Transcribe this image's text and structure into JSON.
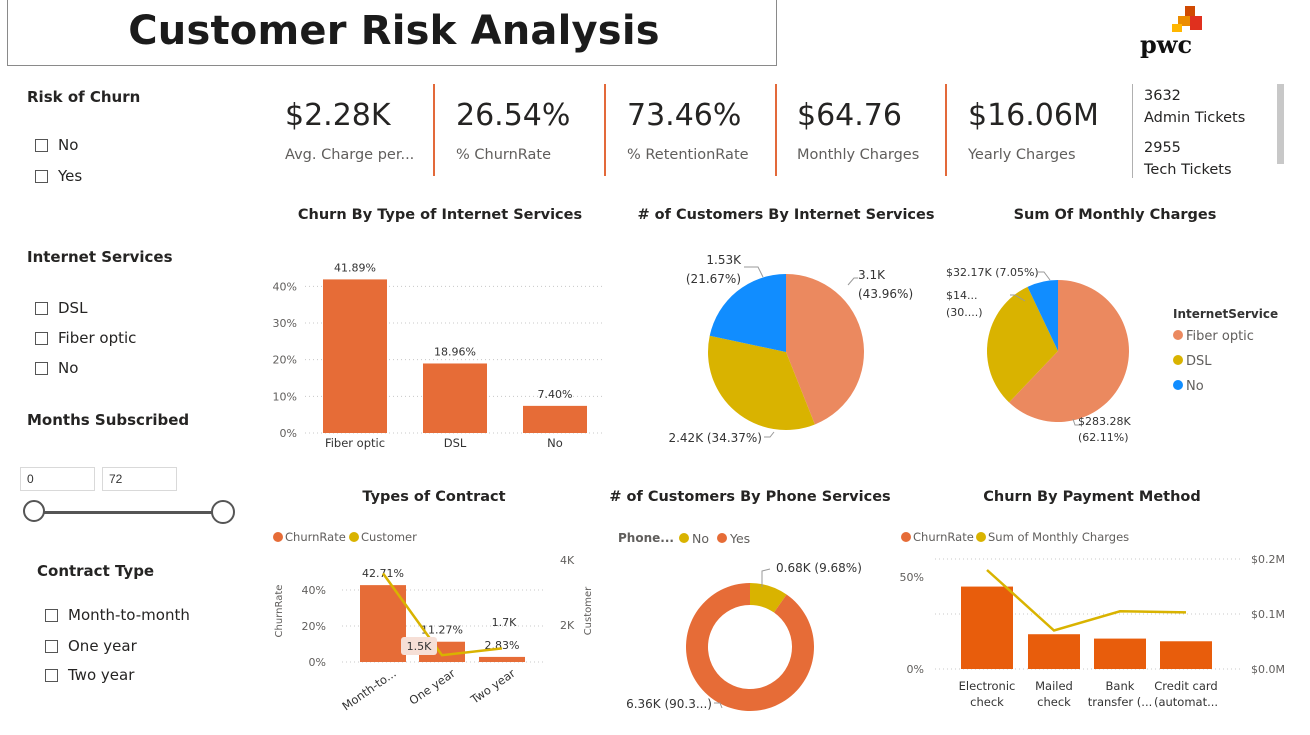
{
  "header": {
    "title": "Customer Risk Analysis",
    "logo_text": "pwc"
  },
  "slicers": {
    "risk_of_churn": {
      "title": "Risk of Churn",
      "items": [
        "No",
        "Yes"
      ]
    },
    "internet_services": {
      "title": "Internet Services",
      "items": [
        "DSL",
        "Fiber optic",
        "No"
      ]
    },
    "months_subscribed": {
      "title": "Months Subscribed",
      "min": "0",
      "max": "72"
    },
    "contract_type": {
      "title": "Contract Type",
      "items": [
        "Month-to-month",
        "One year",
        "Two year"
      ]
    }
  },
  "kpis": [
    {
      "value": "$2.28K",
      "label": "Avg. Charge per..."
    },
    {
      "value": "26.54%",
      "label": "% ChurnRate"
    },
    {
      "value": "73.46%",
      "label": "% RetentionRate"
    },
    {
      "value": "$64.76",
      "label": "Monthly Charges"
    },
    {
      "value": "$16.06M",
      "label": "Yearly Charges"
    }
  ],
  "tickets": [
    {
      "count": "3632",
      "label": "Admin Tickets"
    },
    {
      "count": "2955",
      "label": "Tech Tickets"
    }
  ],
  "colors": {
    "orange": "#e66c37",
    "yellow": "#d9b300",
    "salmon": "#eb895f",
    "blue": "#118dff",
    "separator": "#e3693a"
  },
  "chart_data": [
    {
      "type": "bar",
      "title": "Churn By Type of Internet Services",
      "categories": [
        "Fiber optic",
        "DSL",
        "No"
      ],
      "values": [
        41.89,
        18.96,
        7.4
      ],
      "data_labels": [
        "41.89%",
        "18.96%",
        "7.40%"
      ],
      "y_ticks": [
        "0%",
        "10%",
        "20%",
        "30%",
        "40%"
      ],
      "ylim": [
        0,
        45
      ],
      "grid": true
    },
    {
      "type": "pie",
      "title": "# of Customers By Internet Services",
      "slices": [
        {
          "name": "Fiber optic",
          "value": 3096,
          "label": "3.1K",
          "pct": "(43.96%)"
        },
        {
          "name": "DSL",
          "value": 2421,
          "label": "2.42K (34.37%)"
        },
        {
          "name": "No",
          "value": 1526,
          "label": "1.53K",
          "pct": "(21.67%)"
        }
      ]
    },
    {
      "type": "pie",
      "title": "Sum Of Monthly Charges",
      "legend_title": "InternetService",
      "legend": [
        "Fiber optic",
        "DSL",
        "No"
      ],
      "slices": [
        {
          "name": "Fiber optic",
          "value": 283.28,
          "label": "$283.28K",
          "pct": "(62.11%)"
        },
        {
          "name": "DSL",
          "value": 140.66,
          "label": "$14...",
          "pct": "(30....)"
        },
        {
          "name": "No",
          "value": 32.17,
          "label": "$32.17K (7.05%)"
        }
      ]
    },
    {
      "type": "bar",
      "title": "Types of Contract",
      "legend": [
        "ChurnRate",
        "Customer"
      ],
      "categories": [
        "Month-to...",
        "One year",
        "Two year"
      ],
      "values": [
        42.71,
        11.27,
        2.83
      ],
      "data_labels": [
        "42.71%",
        "11.27%",
        "2.83%"
      ],
      "line_values": [
        3.9,
        1.5,
        1.7
      ],
      "line_labels": [
        "",
        "1.5K",
        "1.7K"
      ],
      "y_ticks": [
        "0%",
        "20%",
        "40%"
      ],
      "y2_ticks": [
        "2K",
        "4K"
      ],
      "ylabel": "ChurnRate",
      "y2label": "Customer",
      "ylim": [
        0,
        50
      ],
      "y2lim": [
        0,
        4.5
      ]
    },
    {
      "type": "pie",
      "title": "# of Customers By Phone Services",
      "legend_title": "Phone...",
      "legend": [
        "No",
        "Yes"
      ],
      "slices": [
        {
          "name": "No",
          "value": 682,
          "label": "0.68K (9.68%)"
        },
        {
          "name": "Yes",
          "value": 6361,
          "label": "6.36K (90.3...)"
        }
      ]
    },
    {
      "type": "bar",
      "title": "Churn By Payment Method",
      "legend": [
        "ChurnRate",
        "Sum of Monthly Charges"
      ],
      "categories": [
        [
          "Electronic",
          "check"
        ],
        [
          "Mailed",
          "check"
        ],
        [
          "Bank",
          "transfer (..."
        ],
        [
          "Credit card",
          "(automat..."
        ]
      ],
      "values": [
        45.29,
        19.11,
        16.71,
        15.24
      ],
      "line_values": [
        0.18,
        0.07,
        0.105,
        0.103
      ],
      "y_ticks": [
        "0%",
        "50%"
      ],
      "y2_ticks": [
        "$0.0M",
        "$0.1M",
        "$0.2M"
      ],
      "ylim": [
        0,
        55
      ],
      "y2lim": [
        0,
        0.2
      ]
    }
  ]
}
